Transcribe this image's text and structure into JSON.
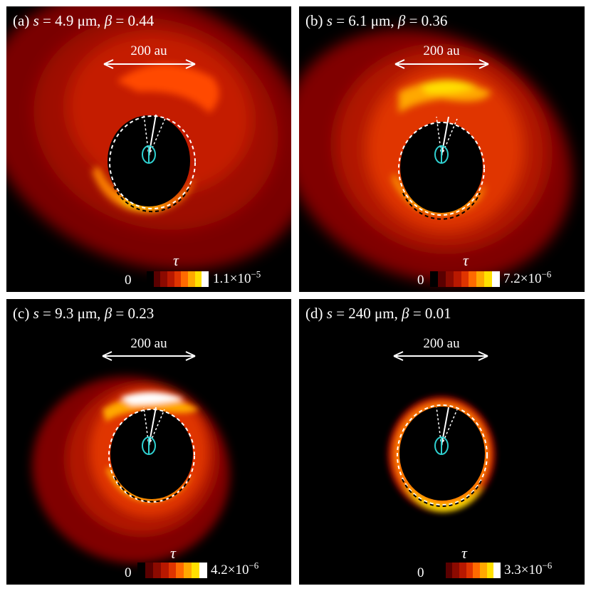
{
  "panels": [
    {
      "label": "(a)",
      "s_sym": "s",
      "s_val": "= 4.9 μm,",
      "beta_sym": "β",
      "beta_val": "= 0.44",
      "scale": "200 au",
      "tau": "τ",
      "cmin": "0",
      "cmax_base": "1.1×10",
      "cmax_exp": "−5"
    },
    {
      "label": "(b)",
      "s_sym": "s",
      "s_val": "= 6.1 μm,",
      "beta_sym": "β",
      "beta_val": "= 0.36",
      "scale": "200 au",
      "tau": "τ",
      "cmin": "0",
      "cmax_base": "7.2×10",
      "cmax_exp": "−6"
    },
    {
      "label": "(c)",
      "s_sym": "s",
      "s_val": "= 9.3 μm,",
      "beta_sym": "β",
      "beta_val": "= 0.23",
      "scale": "200 au",
      "tau": "τ",
      "cmin": "0",
      "cmax_base": "4.2×10",
      "cmax_exp": "−6"
    },
    {
      "label": "(d)",
      "s_sym": "s",
      "s_val": "= 240 μm,",
      "beta_sym": "β",
      "beta_val": "= 0.01",
      "scale": "200 au",
      "tau": "τ",
      "cmin": "0",
      "cmax_base": "3.3×10",
      "cmax_exp": "−6"
    }
  ],
  "colormap": [
    "#000000",
    "#5a0000",
    "#8c0a00",
    "#b81800",
    "#e03400",
    "#ff6a00",
    "#ffa800",
    "#ffe000",
    "#ffffff"
  ],
  "colors": {
    "background": "#000000",
    "annotation": "#ffffff",
    "planet_orbit": "#2fd0d0"
  }
}
